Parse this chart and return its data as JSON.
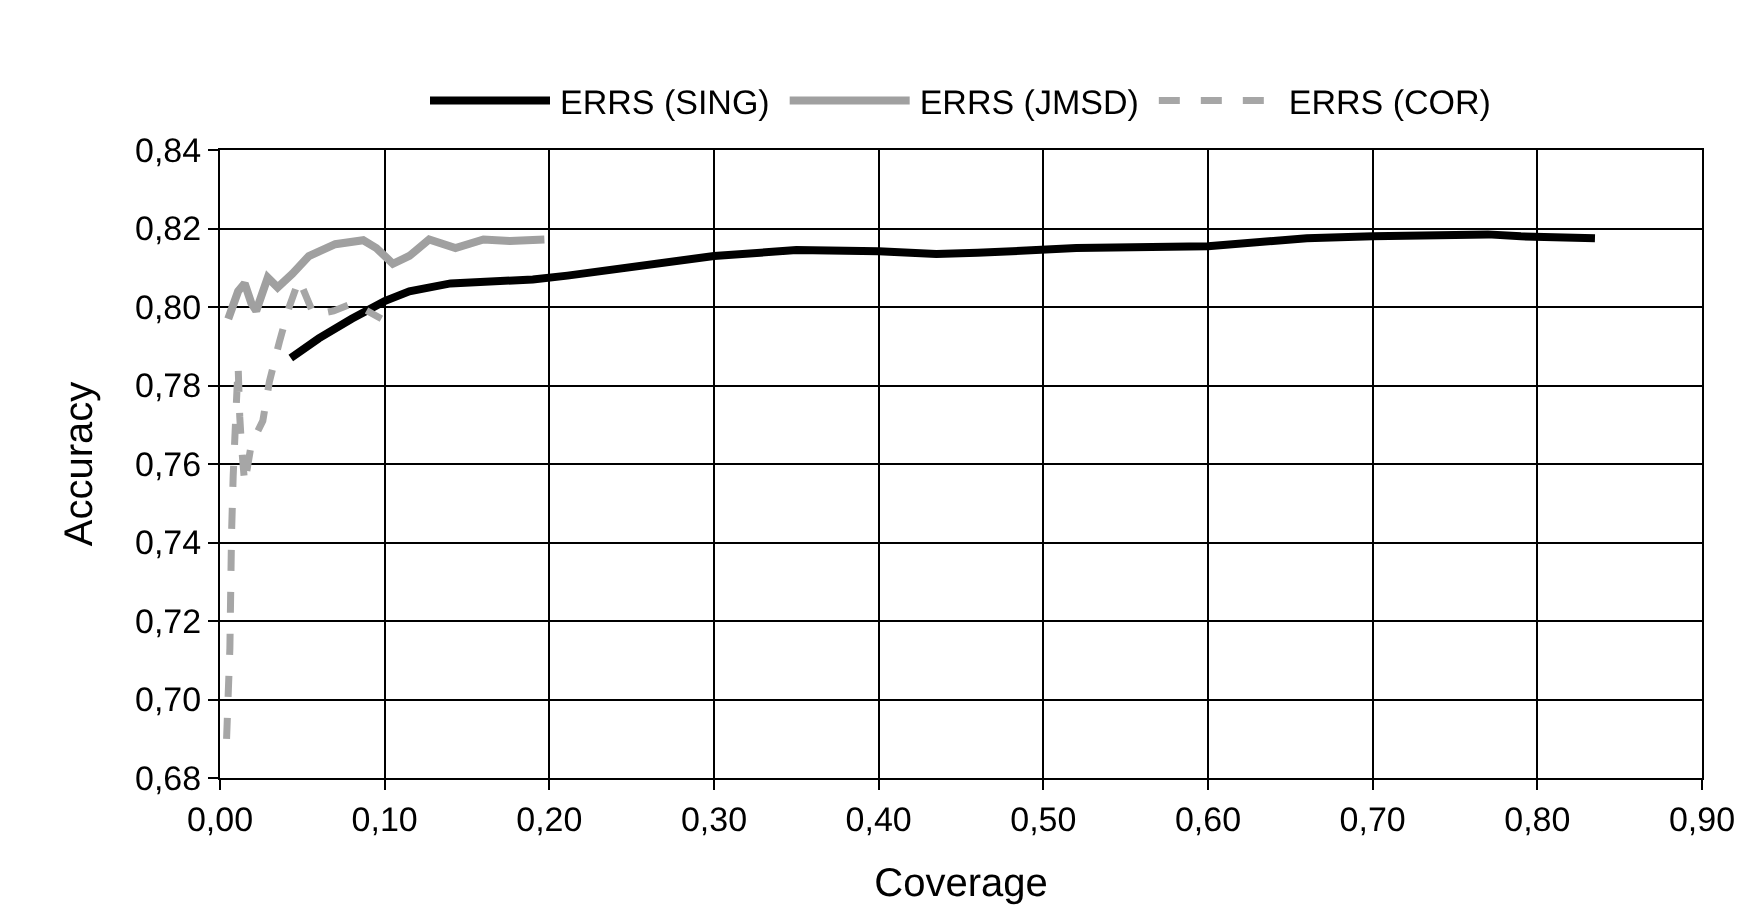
{
  "chart_data": {
    "type": "line",
    "xlabel": "Coverage",
    "ylabel": "Accuracy",
    "xlim": [
      0,
      0.9
    ],
    "ylim": [
      0.68,
      0.84
    ],
    "xticks": [
      {
        "value": 0,
        "label": "0,00"
      },
      {
        "value": 0.1,
        "label": "0,10"
      },
      {
        "value": 0.2,
        "label": "0,20"
      },
      {
        "value": 0.3,
        "label": "0,30"
      },
      {
        "value": 0.4,
        "label": "0,40"
      },
      {
        "value": 0.5,
        "label": "0,50"
      },
      {
        "value": 0.6,
        "label": "0,60"
      },
      {
        "value": 0.7,
        "label": "0,70"
      },
      {
        "value": 0.8,
        "label": "0,80"
      },
      {
        "value": 0.9,
        "label": "0,90"
      }
    ],
    "yticks": [
      {
        "value": 0.68,
        "label": "0,68"
      },
      {
        "value": 0.7,
        "label": "0,70"
      },
      {
        "value": 0.72,
        "label": "0,72"
      },
      {
        "value": 0.74,
        "label": "0,74"
      },
      {
        "value": 0.76,
        "label": "0,76"
      },
      {
        "value": 0.78,
        "label": "0,78"
      },
      {
        "value": 0.8,
        "label": "0,80"
      },
      {
        "value": 0.82,
        "label": "0,82"
      },
      {
        "value": 0.84,
        "label": "0,84"
      }
    ],
    "grid": true,
    "legend": "top",
    "marker": "none",
    "series": [
      {
        "name": "ERRS (SING)",
        "color": "#000000",
        "line_style": "solid",
        "x": [
          0.043,
          0.06,
          0.08,
          0.1,
          0.115,
          0.14,
          0.19,
          0.211,
          0.3,
          0.35,
          0.4,
          0.435,
          0.46,
          0.52,
          0.6,
          0.66,
          0.7,
          0.77,
          0.79,
          0.835
        ],
        "values": [
          0.787,
          0.792,
          0.797,
          0.8015,
          0.804,
          0.806,
          0.807,
          0.808,
          0.813,
          0.8145,
          0.8142,
          0.8135,
          0.8138,
          0.815,
          0.8155,
          0.8175,
          0.818,
          0.8185,
          0.818,
          0.8175
        ]
      },
      {
        "name": "ERRS (JMSD)",
        "color": "#a0a0a0",
        "line_style": "solid",
        "x": [
          0.005,
          0.011,
          0.015,
          0.019,
          0.022,
          0.029,
          0.035,
          0.044,
          0.054,
          0.07,
          0.087,
          0.095,
          0.105,
          0.115,
          0.127,
          0.143,
          0.16,
          0.176,
          0.197
        ],
        "values": [
          0.797,
          0.804,
          0.806,
          0.801,
          0.799,
          0.8075,
          0.805,
          0.8085,
          0.813,
          0.816,
          0.817,
          0.815,
          0.811,
          0.813,
          0.8172,
          0.815,
          0.8172,
          0.8168,
          0.8172
        ]
      },
      {
        "name": "ERRS (COR)",
        "color": "#a6a6a6",
        "line_style": "dashed",
        "x": [
          0.004,
          0.006,
          0.007,
          0.008,
          0.01,
          0.011,
          0.012,
          0.013,
          0.015,
          0.019,
          0.026,
          0.03,
          0.036,
          0.042,
          0.048,
          0.057,
          0.069,
          0.081,
          0.098
        ],
        "values": [
          0.69,
          0.713,
          0.742,
          0.757,
          0.776,
          0.785,
          0.772,
          0.765,
          0.755,
          0.765,
          0.771,
          0.781,
          0.791,
          0.8,
          0.807,
          0.798,
          0.799,
          0.801,
          0.797
        ]
      }
    ]
  }
}
